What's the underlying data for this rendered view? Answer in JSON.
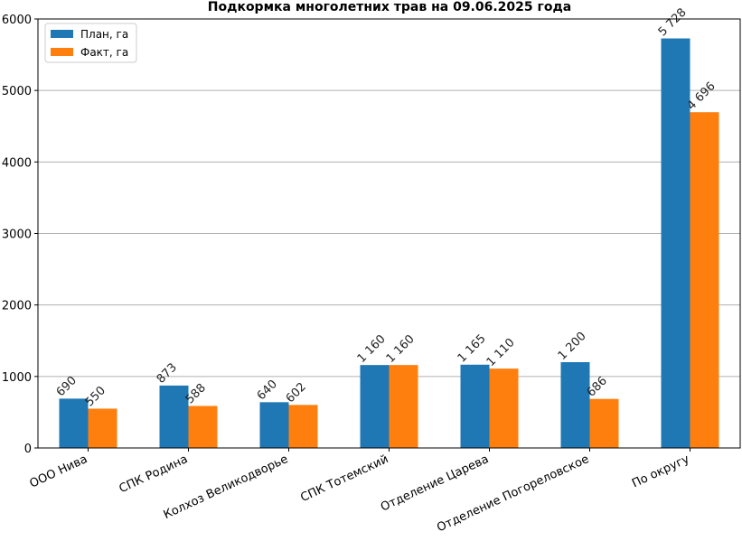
{
  "colors": {
    "plan": "#1f77b4",
    "fact": "#ff7f0e",
    "grid": "#b0b0b0",
    "axis": "#000000"
  },
  "chart_data": {
    "type": "bar",
    "title": "Подкормка многолетних трав на 09.06.2025 года",
    "xlabel": "",
    "ylabel": "",
    "categories": [
      "ООО Нива",
      "СПК Родина",
      "Колхоз Великодворье",
      "СПК Тотемский",
      "Отделение Царева",
      "Отделение Погореловское",
      "По округу"
    ],
    "series": [
      {
        "name": "План, га",
        "values": [
          690,
          873,
          640,
          1160,
          1165,
          1200,
          5728
        ],
        "labels": [
          "690",
          "873",
          "640",
          "1 160",
          "1 165",
          "1 200",
          "5 728"
        ]
      },
      {
        "name": "Факт, га",
        "values": [
          550,
          588,
          602,
          1160,
          1110,
          686,
          4696
        ],
        "labels": [
          "550",
          "588",
          "602",
          "1 160",
          "1 110",
          "686",
          "4 696"
        ]
      }
    ],
    "ylim": [
      0,
      6000
    ],
    "yticks": [
      0,
      1000,
      2000,
      3000,
      4000,
      5000,
      6000
    ],
    "ytick_labels": [
      "0",
      "1000",
      "2000",
      "3000",
      "4000",
      "5000",
      "6000"
    ],
    "grid": "horizontal",
    "legend_position": "top-left"
  }
}
